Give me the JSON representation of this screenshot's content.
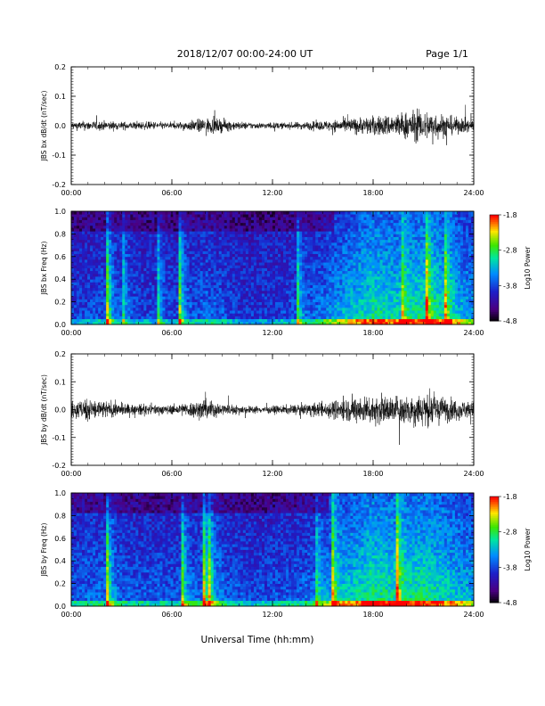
{
  "header": {
    "title": "2018/12/07  00:00-24:00 UT",
    "page": "Page 1/1"
  },
  "footer": {
    "xlabel": "Universal Time (hh:mm)"
  },
  "chart_data": [
    {
      "type": "line",
      "ylabel": "JBS bx dB/dt (nT/sec)",
      "x_ticks": [
        "00:00",
        "06:00",
        "12:00",
        "18:00",
        "24:00"
      ],
      "xlim": [
        0,
        24
      ],
      "ylim": [
        -0.2,
        0.2
      ],
      "y_ticks": [
        "0.2",
        "0.1",
        "0.0",
        "-0.1",
        "-0.2"
      ],
      "series": [
        {
          "x": [
            0,
            1,
            2,
            3,
            4,
            5,
            6,
            7,
            8,
            9,
            10,
            11,
            12,
            13,
            14,
            15,
            16,
            17,
            18,
            19,
            20,
            21,
            22,
            23,
            24
          ],
          "amplitude": [
            0.025,
            0.03,
            0.03,
            0.025,
            0.025,
            0.025,
            0.02,
            0.03,
            0.05,
            0.04,
            0.025,
            0.02,
            0.02,
            0.02,
            0.025,
            0.03,
            0.04,
            0.05,
            0.06,
            0.07,
            0.09,
            0.1,
            0.08,
            0.05,
            0.04
          ]
        }
      ]
    },
    {
      "type": "heatmap",
      "ylabel": "JBS bx Freq (Hz)",
      "colorbar_label": "Log10 Power",
      "colorbar_ticks": [
        "-1.8",
        "-2.8",
        "-3.8",
        "-4.8"
      ],
      "zlim": [
        -4.8,
        -1.8
      ],
      "x_ticks": [
        "00:00",
        "06:00",
        "12:00",
        "18:00",
        "24:00"
      ],
      "xlim": [
        0,
        24
      ],
      "ylim": [
        0,
        1.0
      ],
      "y_ticks": [
        "1.0",
        "0.8",
        "0.6",
        "0.4",
        "0.2",
        "0.0"
      ],
      "activity_profile": [
        0.2,
        0.25,
        0.3,
        0.25,
        0.22,
        0.22,
        0.2,
        0.25,
        0.35,
        0.3,
        0.2,
        0.18,
        0.2,
        0.25,
        0.3,
        0.4,
        0.55,
        0.65,
        0.75,
        0.7,
        0.7,
        0.75,
        0.7,
        0.6,
        0.5
      ]
    },
    {
      "type": "line",
      "ylabel": "JBS by dB/dt (nT/sec)",
      "x_ticks": [
        "00:00",
        "06:00",
        "12:00",
        "18:00",
        "24:00"
      ],
      "xlim": [
        0,
        24
      ],
      "ylim": [
        -0.2,
        0.2
      ],
      "y_ticks": [
        "0.2",
        "0.1",
        "0.0",
        "-0.1",
        "-0.2"
      ],
      "series": [
        {
          "x": [
            0,
            1,
            2,
            3,
            4,
            5,
            6,
            7,
            8,
            9,
            10,
            11,
            12,
            13,
            14,
            15,
            16,
            17,
            18,
            19,
            20,
            21,
            22,
            23,
            24
          ],
          "amplitude": [
            0.06,
            0.08,
            0.06,
            0.04,
            0.035,
            0.035,
            0.03,
            0.05,
            0.07,
            0.04,
            0.03,
            0.025,
            0.025,
            0.03,
            0.04,
            0.05,
            0.07,
            0.09,
            0.1,
            0.09,
            0.1,
            0.12,
            0.09,
            0.07,
            0.05
          ]
        }
      ]
    },
    {
      "type": "heatmap",
      "ylabel": "JBS by Freq (Hz)",
      "colorbar_label": "Log10 Power",
      "colorbar_ticks": [
        "-1.8",
        "-2.8",
        "-3.8",
        "-4.8"
      ],
      "zlim": [
        -4.8,
        -1.8
      ],
      "x_ticks": [
        "00:00",
        "06:00",
        "12:00",
        "18:00",
        "24:00"
      ],
      "xlim": [
        0,
        24
      ],
      "ylim": [
        0,
        1.0
      ],
      "y_ticks": [
        "1.0",
        "0.8",
        "0.6",
        "0.4",
        "0.2",
        "0.0"
      ],
      "activity_profile": [
        0.3,
        0.35,
        0.35,
        0.3,
        0.3,
        0.3,
        0.28,
        0.32,
        0.4,
        0.35,
        0.28,
        0.25,
        0.28,
        0.3,
        0.35,
        0.45,
        0.6,
        0.7,
        0.8,
        0.75,
        0.72,
        0.78,
        0.72,
        0.62,
        0.55
      ]
    }
  ]
}
